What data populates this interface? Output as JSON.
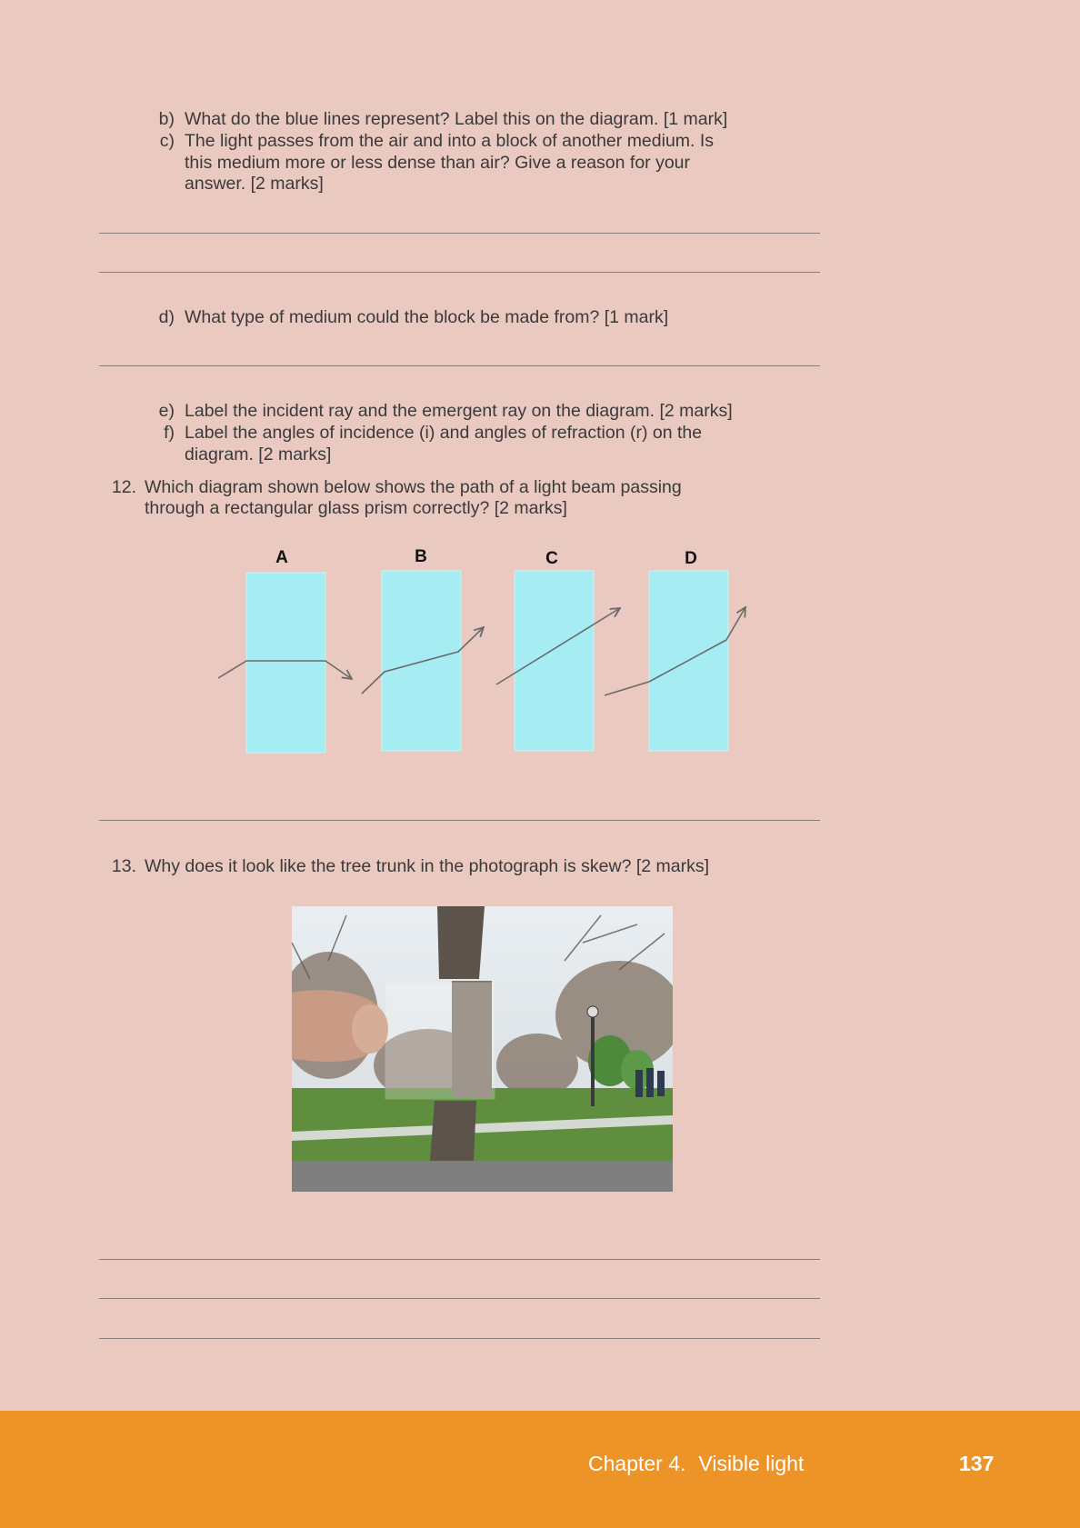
{
  "questions": {
    "b": {
      "label": "b)",
      "lines": [
        "What do the blue lines represent? Label this on the diagram. [1 mark]"
      ]
    },
    "c": {
      "label": "c)",
      "lines": [
        "The light passes from the air and into a block of another medium. Is",
        "this medium more or less dense than air? Give a reason for your",
        "answer. [2 marks]"
      ]
    },
    "d": {
      "label": "d)",
      "lines": [
        "What type of medium could the block be made from? [1 mark]"
      ]
    },
    "e": {
      "label": "e)",
      "lines": [
        "Label the incident ray and the emergent ray on the diagram. [2 marks]"
      ]
    },
    "f": {
      "label": "f)",
      "lines": [
        "Label the angles of incidence (i) and angles of refraction (r) on the",
        "diagram. [2 marks]"
      ]
    },
    "q12": {
      "label": "12.",
      "lines": [
        "Which diagram shown below shows the path of a light beam passing",
        "through a rectangular glass prism correctly? [2 marks]"
      ]
    },
    "q13": {
      "label": "13.",
      "lines": [
        "Why does it look like the tree trunk in the photograph is skew? [2 marks]"
      ]
    }
  },
  "diagram": {
    "labels": [
      "A",
      "B",
      "C",
      "D"
    ],
    "block_color": "#a6ecf3",
    "ray_color": "#6a6a6a"
  },
  "photo": {
    "description_icon": "photo-tree-trunk-through-glass-block"
  },
  "footer": {
    "chapter": "Chapter 4.",
    "title": "Visible light",
    "page": "137",
    "color": "#ec9427"
  }
}
